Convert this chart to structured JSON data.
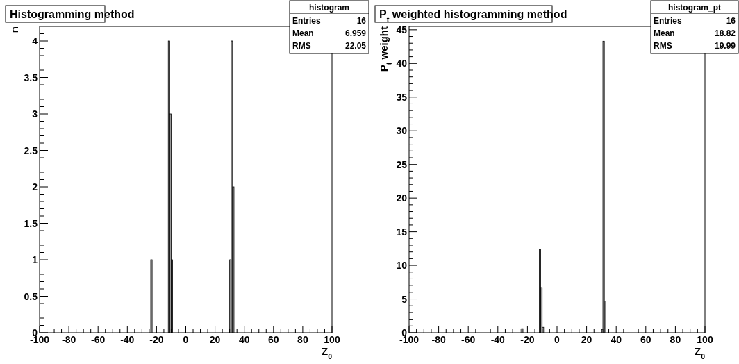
{
  "chart_data": [
    {
      "type": "histogram",
      "title": "Histogramming method",
      "xlabel": "Z$_{0}$",
      "ylabel": "n",
      "bins": [
        -24,
        -23,
        -12,
        -11,
        -10,
        -9,
        30,
        31,
        32,
        33
      ],
      "values": [
        1,
        0,
        4,
        3,
        1,
        0,
        1,
        4,
        2
      ],
      "color": "#999999",
      "annotations": [
        "histogram",
        "Entries",
        "16",
        "Mean",
        "6.959",
        "RMS",
        "22.05"
      ],
      "xlim": [
        -100,
        100
      ],
      "ylim": [
        0,
        4.2
      ],
      "xticks": [
        -100,
        {
          "value": -95,
          "label": null
        },
        {
          "value": -90,
          "label": null
        },
        {
          "value": -85,
          "label": null
        },
        -80,
        {
          "value": -75,
          "label": null
        },
        {
          "value": -70,
          "label": null
        },
        {
          "value": -65,
          "label": null
        },
        -60,
        {
          "value": -55,
          "label": null
        },
        {
          "value": -50,
          "label": null
        },
        {
          "value": -45,
          "label": null
        },
        -40,
        {
          "value": -35,
          "label": null
        },
        {
          "value": -30,
          "label": null
        },
        {
          "value": -25,
          "label": null
        },
        -20,
        {
          "value": -15,
          "label": null
        },
        {
          "value": -10,
          "label": null
        },
        {
          "value": -5,
          "label": null
        },
        0,
        {
          "value": 5,
          "label": null
        },
        {
          "value": 10,
          "label": null
        },
        {
          "value": 15,
          "label": null
        },
        20,
        {
          "value": 25,
          "label": null
        },
        {
          "value": 30,
          "label": null
        },
        {
          "value": 35,
          "label": null
        },
        40,
        {
          "value": 45,
          "label": null
        },
        {
          "value": 50,
          "label": null
        },
        {
          "value": 55,
          "label": null
        },
        60,
        {
          "value": 65,
          "label": null
        },
        {
          "value": 70,
          "label": null
        },
        {
          "value": 75,
          "label": null
        },
        80,
        {
          "value": 85,
          "label": null
        },
        {
          "value": 90,
          "label": null
        },
        {
          "value": 95,
          "label": null
        },
        100
      ],
      "yticks": [
        0,
        {
          "value": 0.1,
          "label": null
        },
        {
          "value": 0.2,
          "label": null
        },
        {
          "value": 0.3,
          "label": null
        },
        {
          "value": 0.4,
          "label": null
        },
        0.5,
        {
          "value": 0.6,
          "label": null
        },
        {
          "value": 0.7,
          "label": null
        },
        {
          "value": 0.8,
          "label": null
        },
        {
          "value": 0.9,
          "label": null
        },
        1,
        {
          "value": 1.1,
          "label": null
        },
        {
          "value": 1.2,
          "label": null
        },
        {
          "value": 1.3,
          "label": null
        },
        {
          "value": 1.4,
          "label": null
        },
        1.5,
        {
          "value": 1.6,
          "label": null
        },
        {
          "value": 1.7,
          "label": null
        },
        {
          "value": 1.8,
          "label": null
        },
        {
          "value": 1.9,
          "label": null
        },
        2,
        {
          "value": 2.1,
          "label": null
        },
        {
          "value": 2.2,
          "label": null
        },
        {
          "value": 2.3,
          "label": null
        },
        {
          "value": 2.4,
          "label": null
        },
        2.5,
        {
          "value": 2.6,
          "label": null
        },
        {
          "value": 2.7,
          "label": null
        },
        {
          "value": 2.8,
          "label": null
        },
        {
          "value": 2.9,
          "label": null
        },
        3,
        {
          "value": 3.1,
          "label": null
        },
        {
          "value": 3.2,
          "label": null
        },
        {
          "value": 3.3,
          "label": null
        },
        {
          "value": 3.4,
          "label": null
        },
        3.5,
        {
          "value": 3.6,
          "label": null
        },
        {
          "value": 3.7,
          "label": null
        },
        {
          "value": 3.8,
          "label": null
        },
        {
          "value": 3.9,
          "label": null
        },
        4,
        {
          "value": 4.1,
          "label": null
        }
      ]
    },
    {
      "type": "histogram",
      "title": "P$_{t}$ weighted histogramming method",
      "xlabel": "Z$_{0}$",
      "ylabel": "P$_{t}$ weight",
      "bins": [
        -24,
        -23,
        -12,
        -11,
        -10,
        -9,
        30,
        31,
        32,
        33
      ],
      "values": [
        0.6,
        0,
        12.4,
        6.7,
        0.8,
        0,
        0.5,
        43.3,
        4.7
      ],
      "color": "#999999",
      "annotations": [
        "histogram_pt",
        "Entries",
        "16",
        "Mean",
        "18.82",
        "RMS",
        "19.99"
      ],
      "xlim": [
        -100,
        100
      ],
      "ylim": [
        0,
        45.5
      ],
      "xticks": [
        -100,
        {
          "value": -95,
          "label": null
        },
        {
          "value": -90,
          "label": null
        },
        {
          "value": -85,
          "label": null
        },
        -80,
        {
          "value": -75,
          "label": null
        },
        {
          "value": -70,
          "label": null
        },
        {
          "value": -65,
          "label": null
        },
        -60,
        {
          "value": -55,
          "label": null
        },
        {
          "value": -50,
          "label": null
        },
        {
          "value": -45,
          "label": null
        },
        -40,
        {
          "value": -35,
          "label": null
        },
        {
          "value": -30,
          "label": null
        },
        {
          "value": -25,
          "label": null
        },
        -20,
        {
          "value": -15,
          "label": null
        },
        {
          "value": -10,
          "label": null
        },
        {
          "value": -5,
          "label": null
        },
        0,
        {
          "value": 5,
          "label": null
        },
        {
          "value": 10,
          "label": null
        },
        {
          "value": 15,
          "label": null
        },
        20,
        {
          "value": 25,
          "label": null
        },
        {
          "value": 30,
          "label": null
        },
        {
          "value": 35,
          "label": null
        },
        40,
        {
          "value": 45,
          "label": null
        },
        {
          "value": 50,
          "label": null
        },
        {
          "value": 55,
          "label": null
        },
        60,
        {
          "value": 65,
          "label": null
        },
        {
          "value": 70,
          "label": null
        },
        {
          "value": 75,
          "label": null
        },
        80,
        {
          "value": 85,
          "label": null
        },
        {
          "value": 90,
          "label": null
        },
        {
          "value": 95,
          "label": null
        },
        100
      ],
      "yticks": [
        0,
        {
          "value": 1,
          "label": null
        },
        {
          "value": 2,
          "label": null
        },
        {
          "value": 3,
          "label": null
        },
        {
          "value": 4,
          "label": null
        },
        5,
        {
          "value": 6,
          "label": null
        },
        {
          "value": 7,
          "label": null
        },
        {
          "value": 8,
          "label": null
        },
        {
          "value": 9,
          "label": null
        },
        10,
        {
          "value": 11,
          "label": null
        },
        {
          "value": 12,
          "label": null
        },
        {
          "value": 13,
          "label": null
        },
        {
          "value": 14,
          "label": null
        },
        15,
        {
          "value": 16,
          "label": null
        },
        {
          "value": 17,
          "label": null
        },
        {
          "value": 18,
          "label": null
        },
        {
          "value": 19,
          "label": null
        },
        20,
        {
          "value": 21,
          "label": null
        },
        {
          "value": 22,
          "label": null
        },
        {
          "value": 23,
          "label": null
        },
        {
          "value": 24,
          "label": null
        },
        25,
        {
          "value": 26,
          "label": null
        },
        {
          "value": 27,
          "label": null
        },
        {
          "value": 28,
          "label": null
        },
        {
          "value": 29,
          "label": null
        },
        30,
        {
          "value": 31,
          "label": null
        },
        {
          "value": 32,
          "label": null
        },
        {
          "value": 33,
          "label": null
        },
        {
          "value": 34,
          "label": null
        },
        35,
        {
          "value": 36,
          "label": null
        },
        {
          "value": 37,
          "label": null
        },
        {
          "value": 38,
          "label": null
        },
        {
          "value": 39,
          "label": null
        },
        40,
        {
          "value": 41,
          "label": null
        },
        {
          "value": 42,
          "label": null
        },
        {
          "value": 43,
          "label": null
        },
        {
          "value": 44,
          "label": null
        },
        45
      ]
    }
  ]
}
